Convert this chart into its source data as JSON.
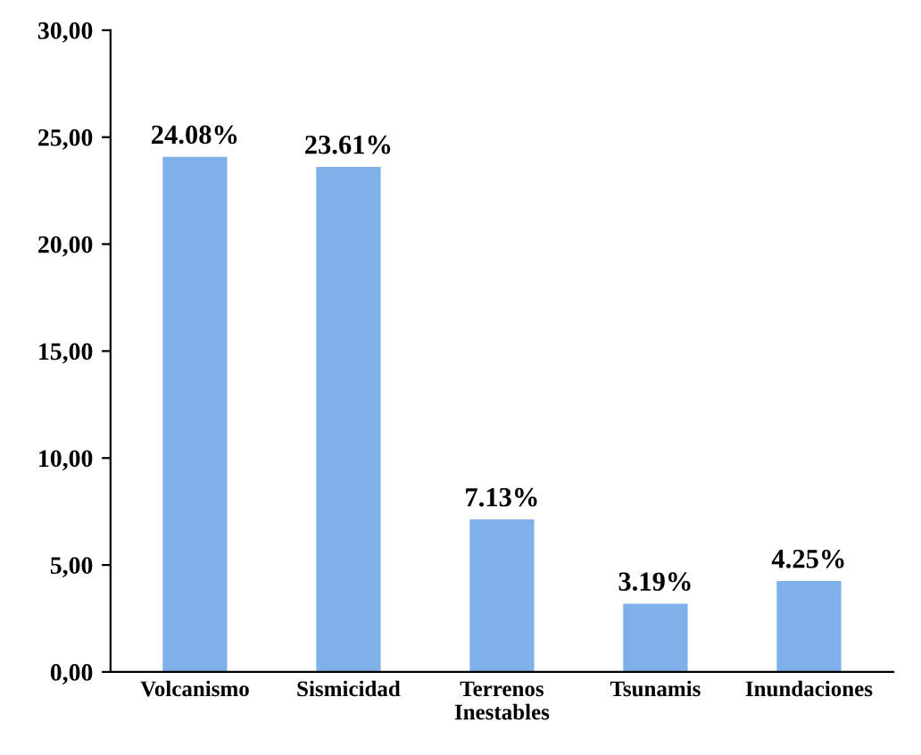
{
  "chart_data": {
    "type": "bar",
    "categories": [
      "Volcanismo",
      "Sismicidad",
      "Terrenos\nInestables",
      "Tsunamis",
      "Inundaciones"
    ],
    "values": [
      24.08,
      23.61,
      7.13,
      3.19,
      4.25
    ],
    "value_labels": [
      "24.08%",
      "23.61%",
      "7.13%",
      "3.19%",
      "4.25%"
    ],
    "color": "#7fb0ea",
    "ylim": [
      0,
      30
    ],
    "yticks": [
      {
        "value": 0,
        "label": "0,00"
      },
      {
        "value": 5,
        "label": "5,00"
      },
      {
        "value": 10,
        "label": "10,00"
      },
      {
        "value": 15,
        "label": "15,00"
      },
      {
        "value": 20,
        "label": "20,00"
      },
      {
        "value": 25,
        "label": "25,00"
      },
      {
        "value": 30,
        "label": "30,00"
      }
    ],
    "grid": false,
    "legend": false
  }
}
